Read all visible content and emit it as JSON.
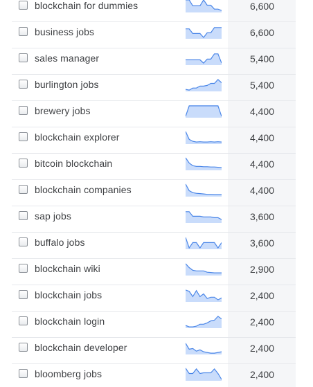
{
  "colors": {
    "spark_line": "#4a86e8",
    "spark_fill": "#c9dcfb",
    "value_col_bg": "#f5f6f8",
    "row_separator": "#e6e8ec"
  },
  "keywords": [
    {
      "term": "blockchain for dummies",
      "volume": "6,600",
      "trend": [
        0.9,
        0.9,
        0.45,
        0.45,
        0.45,
        0.9,
        0.5,
        0.5,
        0.2,
        0.2,
        0.1
      ]
    },
    {
      "term": "business jobs",
      "volume": "6,600",
      "trend": [
        0.7,
        0.7,
        0.35,
        0.35,
        0.35,
        0.05,
        0.4,
        0.4,
        0.8,
        0.8,
        0.8
      ]
    },
    {
      "term": "sales manager",
      "volume": "5,400",
      "trend": [
        0.35,
        0.35,
        0.35,
        0.35,
        0.35,
        0.1,
        0.4,
        0.4,
        0.8,
        0.8,
        0.1
      ]
    },
    {
      "term": "burlington jobs",
      "volume": "5,400",
      "trend": [
        0.1,
        0.05,
        0.2,
        0.2,
        0.35,
        0.35,
        0.4,
        0.55,
        0.55,
        0.85,
        0.6
      ]
    },
    {
      "term": "brewery jobs",
      "volume": "4,400",
      "trend": [
        0.05,
        0.85,
        0.85,
        0.85,
        0.85,
        0.85,
        0.85,
        0.85,
        0.85,
        0.85,
        0.05
      ]
    },
    {
      "term": "blockchain explorer",
      "volume": "4,400",
      "trend": [
        0.9,
        0.3,
        0.15,
        0.1,
        0.12,
        0.1,
        0.1,
        0.12,
        0.1,
        0.12,
        0.1
      ]
    },
    {
      "term": "bitcoin blockchain",
      "volume": "4,400",
      "trend": [
        0.9,
        0.5,
        0.3,
        0.25,
        0.25,
        0.22,
        0.22,
        0.2,
        0.2,
        0.18,
        0.15
      ]
    },
    {
      "term": "blockchain companies",
      "volume": "4,400",
      "trend": [
        0.9,
        0.4,
        0.25,
        0.2,
        0.18,
        0.15,
        0.12,
        0.12,
        0.1,
        0.1,
        0.1
      ]
    },
    {
      "term": "sap jobs",
      "volume": "3,600",
      "trend": [
        0.8,
        0.8,
        0.45,
        0.45,
        0.45,
        0.4,
        0.4,
        0.4,
        0.35,
        0.35,
        0.2
      ]
    },
    {
      "term": "buffalo jobs",
      "volume": "3,600",
      "trend": [
        0.85,
        0.05,
        0.45,
        0.45,
        0.05,
        0.45,
        0.45,
        0.45,
        0.45,
        0.05,
        0.45
      ]
    },
    {
      "term": "blockchain wiki",
      "volume": "2,900",
      "trend": [
        0.85,
        0.55,
        0.35,
        0.3,
        0.3,
        0.3,
        0.2,
        0.18,
        0.15,
        0.15,
        0.15
      ]
    },
    {
      "term": "blockchain jobs",
      "volume": "2,400",
      "trend": [
        0.85,
        0.75,
        0.35,
        0.8,
        0.35,
        0.55,
        0.2,
        0.3,
        0.3,
        0.1,
        0.25
      ]
    },
    {
      "term": "blockchain login",
      "volume": "2,400",
      "trend": [
        0.15,
        0.05,
        0.05,
        0.1,
        0.25,
        0.25,
        0.35,
        0.5,
        0.55,
        0.85,
        0.65
      ]
    },
    {
      "term": "blockchain developer",
      "volume": "2,400",
      "trend": [
        0.8,
        0.35,
        0.4,
        0.2,
        0.3,
        0.15,
        0.1,
        0.05,
        0.05,
        0.1,
        0.15
      ]
    },
    {
      "term": "bloomberg jobs",
      "volume": "2,400",
      "trend": [
        0.9,
        0.5,
        0.5,
        0.85,
        0.5,
        0.55,
        0.55,
        0.55,
        0.85,
        0.5,
        0.05
      ]
    }
  ]
}
